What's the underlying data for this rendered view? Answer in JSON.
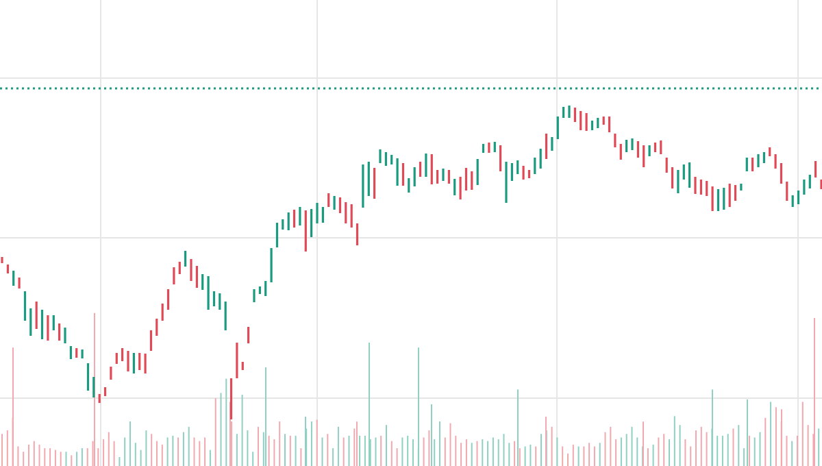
{
  "chart_data": {
    "type": "candlestick",
    "colors": {
      "up": "#1a9a7f",
      "down": "#e04a57",
      "line": "#1a9a7f",
      "grid": "#e6e6e6"
    },
    "reference_line": {
      "style": "dotted"
    },
    "candles": [
      [
        0,
        375,
        384
      ],
      [
        0,
        386,
        399
      ],
      [
        1,
        395,
        417
      ],
      [
        0,
        405,
        421
      ],
      [
        1,
        425,
        468
      ],
      [
        1,
        450,
        490
      ],
      [
        0,
        440,
        480
      ],
      [
        1,
        452,
        495
      ],
      [
        0,
        460,
        497
      ],
      [
        1,
        460,
        482
      ],
      [
        0,
        472,
        497
      ],
      [
        1,
        478,
        501
      ],
      [
        1,
        505,
        524
      ],
      [
        0,
        508,
        522
      ],
      [
        1,
        510,
        523
      ],
      [
        1,
        530,
        570
      ],
      [
        1,
        550,
        580
      ],
      [
        0,
        575,
        588
      ],
      [
        0,
        565,
        578
      ],
      [
        0,
        535,
        554
      ],
      [
        0,
        515,
        531
      ],
      [
        0,
        508,
        527
      ],
      [
        0,
        512,
        542
      ],
      [
        1,
        515,
        545
      ],
      [
        0,
        515,
        540
      ],
      [
        0,
        516,
        545
      ],
      [
        0,
        482,
        512
      ],
      [
        0,
        465,
        490
      ],
      [
        0,
        443,
        468
      ],
      [
        0,
        422,
        452
      ],
      [
        0,
        390,
        415
      ],
      [
        0,
        382,
        400
      ],
      [
        1,
        366,
        389
      ],
      [
        0,
        378,
        410
      ],
      [
        0,
        388,
        420
      ],
      [
        1,
        400,
        423
      ],
      [
        1,
        403,
        452
      ],
      [
        1,
        425,
        447
      ],
      [
        1,
        428,
        452
      ],
      [
        1,
        440,
        482
      ],
      [
        0,
        552,
        612
      ],
      [
        0,
        500,
        552
      ],
      [
        0,
        528,
        540
      ],
      [
        0,
        477,
        501
      ],
      [
        1,
        422,
        441
      ],
      [
        1,
        418,
        429
      ],
      [
        1,
        410,
        432
      ],
      [
        1,
        362,
        412
      ],
      [
        1,
        325,
        361
      ],
      [
        1,
        320,
        335
      ],
      [
        1,
        310,
        336
      ],
      [
        0,
        306,
        332
      ],
      [
        1,
        302,
        329
      ],
      [
        0,
        307,
        367
      ],
      [
        1,
        305,
        346
      ],
      [
        1,
        296,
        326
      ],
      [
        1,
        302,
        325
      ],
      [
        0,
        282,
        302
      ],
      [
        1,
        286,
        306
      ],
      [
        0,
        288,
        311
      ],
      [
        0,
        295,
        326
      ],
      [
        0,
        298,
        332
      ],
      [
        0,
        326,
        358
      ],
      [
        1,
        240,
        303
      ],
      [
        1,
        236,
        286
      ],
      [
        0,
        245,
        290
      ],
      [
        1,
        218,
        238
      ],
      [
        1,
        222,
        242
      ],
      [
        1,
        226,
        240
      ],
      [
        1,
        231,
        271
      ],
      [
        0,
        238,
        271
      ],
      [
        1,
        260,
        281
      ],
      [
        1,
        244,
        272
      ],
      [
        0,
        236,
        258
      ],
      [
        1,
        224,
        258
      ],
      [
        0,
        225,
        269
      ],
      [
        0,
        248,
        268
      ],
      [
        1,
        246,
        264
      ],
      [
        0,
        248,
        268
      ],
      [
        1,
        261,
        285
      ],
      [
        0,
        258,
        291
      ],
      [
        0,
        245,
        278
      ],
      [
        0,
        250,
        277
      ],
      [
        1,
        232,
        270
      ],
      [
        1,
        210,
        223
      ],
      [
        0,
        208,
        223
      ],
      [
        1,
        207,
        222
      ],
      [
        0,
        212,
        250
      ],
      [
        1,
        236,
        296
      ],
      [
        1,
        238,
        264
      ],
      [
        1,
        234,
        254
      ],
      [
        0,
        242,
        262
      ],
      [
        0,
        248,
        260
      ],
      [
        1,
        230,
        254
      ],
      [
        1,
        217,
        246
      ],
      [
        0,
        195,
        232
      ],
      [
        1,
        200,
        220
      ],
      [
        1,
        170,
        203
      ],
      [
        1,
        156,
        172
      ],
      [
        1,
        154,
        172
      ],
      [
        0,
        157,
        178
      ],
      [
        0,
        162,
        190
      ],
      [
        0,
        165,
        191
      ],
      [
        1,
        176,
        190
      ],
      [
        1,
        172,
        187
      ],
      [
        0,
        170,
        182
      ],
      [
        0,
        170,
        193
      ],
      [
        0,
        195,
        215
      ],
      [
        0,
        210,
        233
      ],
      [
        1,
        204,
        222
      ],
      [
        1,
        202,
        219
      ],
      [
        0,
        206,
        230
      ],
      [
        0,
        212,
        244
      ],
      [
        1,
        212,
        228
      ],
      [
        0,
        208,
        222
      ],
      [
        0,
        205,
        225
      ],
      [
        0,
        230,
        252
      ],
      [
        0,
        244,
        275
      ],
      [
        1,
        248,
        282
      ],
      [
        1,
        240,
        262
      ],
      [
        1,
        237,
        274
      ],
      [
        0,
        258,
        283
      ],
      [
        0,
        262,
        284
      ],
      [
        0,
        264,
        286
      ],
      [
        0,
        272,
        308
      ],
      [
        1,
        276,
        308
      ],
      [
        1,
        274,
        306
      ],
      [
        0,
        268,
        302
      ],
      [
        0,
        270,
        293
      ],
      [
        1,
        268,
        278
      ],
      [
        1,
        230,
        250
      ],
      [
        0,
        230,
        250
      ],
      [
        1,
        225,
        244
      ],
      [
        1,
        222,
        238
      ],
      [
        0,
        215,
        228
      ],
      [
        0,
        225,
        246
      ],
      [
        0,
        238,
        268
      ],
      [
        0,
        265,
        293
      ],
      [
        1,
        285,
        302
      ],
      [
        1,
        278,
        298
      ],
      [
        1,
        262,
        284
      ],
      [
        1,
        255,
        275
      ],
      [
        0,
        235,
        259
      ],
      [
        0,
        262,
        276
      ]
    ],
    "volumes": [
      [
        0,
        18
      ],
      [
        0,
        20
      ],
      [
        0,
        27
      ],
      [
        0,
        11
      ],
      [
        0,
        8
      ],
      [
        0,
        12
      ],
      [
        0,
        14
      ],
      [
        0,
        12
      ],
      [
        0,
        10
      ],
      [
        0,
        10
      ],
      [
        0,
        9
      ],
      [
        0,
        8
      ],
      [
        1,
        8
      ],
      [
        0,
        6
      ],
      [
        1,
        8
      ],
      [
        1,
        10
      ],
      [
        0,
        10
      ],
      [
        0,
        14
      ],
      [
        0,
        10
      ],
      [
        0,
        15
      ],
      [
        0,
        19
      ],
      [
        0,
        14
      ],
      [
        1,
        5
      ],
      [
        1,
        16
      ],
      [
        1,
        25
      ],
      [
        1,
        13
      ],
      [
        1,
        9
      ],
      [
        1,
        20
      ],
      [
        0,
        18
      ],
      [
        0,
        14
      ],
      [
        0,
        12
      ],
      [
        1,
        16
      ],
      [
        1,
        17
      ],
      [
        0,
        16
      ],
      [
        1,
        19
      ],
      [
        1,
        22
      ],
      [
        0,
        16
      ],
      [
        0,
        14
      ],
      [
        0,
        16
      ],
      [
        1,
        9
      ],
      [
        0,
        38
      ],
      [
        1,
        41
      ],
      [
        1,
        49
      ],
      [
        0,
        25
      ],
      [
        1,
        18
      ],
      [
        1,
        40
      ],
      [
        1,
        20
      ],
      [
        1,
        8
      ],
      [
        0,
        22
      ],
      [
        1,
        19
      ],
      [
        0,
        17
      ],
      [
        0,
        15
      ],
      [
        0,
        25
      ],
      [
        1,
        18
      ],
      [
        0,
        17
      ],
      [
        1,
        17
      ],
      [
        0,
        10
      ],
      [
        1,
        21
      ],
      [
        1,
        25
      ],
      [
        0,
        26
      ],
      [
        1,
        16
      ],
      [
        0,
        18
      ],
      [
        1,
        10
      ],
      [
        1,
        22
      ],
      [
        0,
        16
      ],
      [
        1,
        17
      ],
      [
        0,
        21
      ],
      [
        1,
        17
      ],
      [
        1,
        17
      ],
      [
        1,
        15
      ],
      [
        1,
        16
      ],
      [
        0,
        17
      ],
      [
        1,
        23
      ],
      [
        0,
        14
      ],
      [
        0,
        10
      ],
      [
        1,
        16
      ],
      [
        1,
        17
      ],
      [
        1,
        15
      ],
      [
        1,
        10
      ],
      [
        0,
        16
      ],
      [
        0,
        20
      ],
      [
        1,
        15
      ],
      [
        1,
        25
      ],
      [
        0,
        16
      ],
      [
        0,
        24
      ],
      [
        0,
        17
      ],
      [
        0,
        13
      ],
      [
        0,
        15
      ],
      [
        1,
        13
      ],
      [
        0,
        14
      ],
      [
        1,
        15
      ],
      [
        1,
        14
      ],
      [
        1,
        16
      ],
      [
        1,
        15
      ],
      [
        1,
        18
      ],
      [
        1,
        13
      ],
      [
        0,
        14
      ],
      [
        0,
        10
      ],
      [
        1,
        11
      ],
      [
        1,
        12
      ],
      [
        0,
        11
      ],
      [
        1,
        18
      ],
      [
        1,
        20
      ],
      [
        0,
        22
      ],
      [
        1,
        16
      ],
      [
        0,
        11
      ],
      [
        0,
        7
      ],
      [
        0,
        12
      ],
      [
        1,
        11
      ],
      [
        0,
        11
      ],
      [
        0,
        13
      ],
      [
        0,
        11
      ],
      [
        1,
        13
      ],
      [
        0,
        19
      ],
      [
        0,
        22
      ],
      [
        0,
        15
      ],
      [
        1,
        16
      ],
      [
        1,
        18
      ],
      [
        1,
        22
      ],
      [
        1,
        16
      ],
      [
        1,
        11
      ],
      [
        0,
        10
      ],
      [
        1,
        12
      ],
      [
        0,
        16
      ],
      [
        0,
        18
      ],
      [
        1,
        15
      ],
      [
        1,
        28
      ],
      [
        1,
        23
      ],
      [
        0,
        15
      ],
      [
        0,
        11
      ],
      [
        0,
        20
      ],
      [
        0,
        22
      ],
      [
        0,
        19
      ],
      [
        1,
        21
      ],
      [
        1,
        17
      ],
      [
        1,
        17
      ],
      [
        1,
        18
      ],
      [
        0,
        21
      ],
      [
        1,
        23
      ],
      [
        1,
        10
      ],
      [
        0,
        17
      ],
      [
        1,
        16
      ],
      [
        1,
        19
      ],
      [
        0,
        27
      ],
      [
        1,
        36
      ],
      [
        0,
        33
      ],
      [
        0,
        25
      ],
      [
        0,
        17
      ],
      [
        1,
        14
      ],
      [
        0,
        17
      ],
      [
        0,
        36
      ],
      [
        0,
        23
      ],
      [
        0,
        18
      ],
      [
        1,
        21
      ]
    ],
    "spike_volumes": [
      [
        0,
        48
      ],
      [
        0,
        62
      ],
      [
        0,
        26
      ],
      [
        1,
        40
      ],
      [
        1,
        20
      ],
      [
        0,
        18
      ],
      [
        1,
        50
      ],
      [
        1,
        48
      ],
      [
        1,
        25
      ],
      [
        1,
        31
      ],
      [
        0,
        20
      ],
      [
        0,
        18
      ],
      [
        1,
        31
      ],
      [
        0,
        23
      ],
      [
        1,
        27
      ],
      [
        0,
        60
      ]
    ]
  }
}
